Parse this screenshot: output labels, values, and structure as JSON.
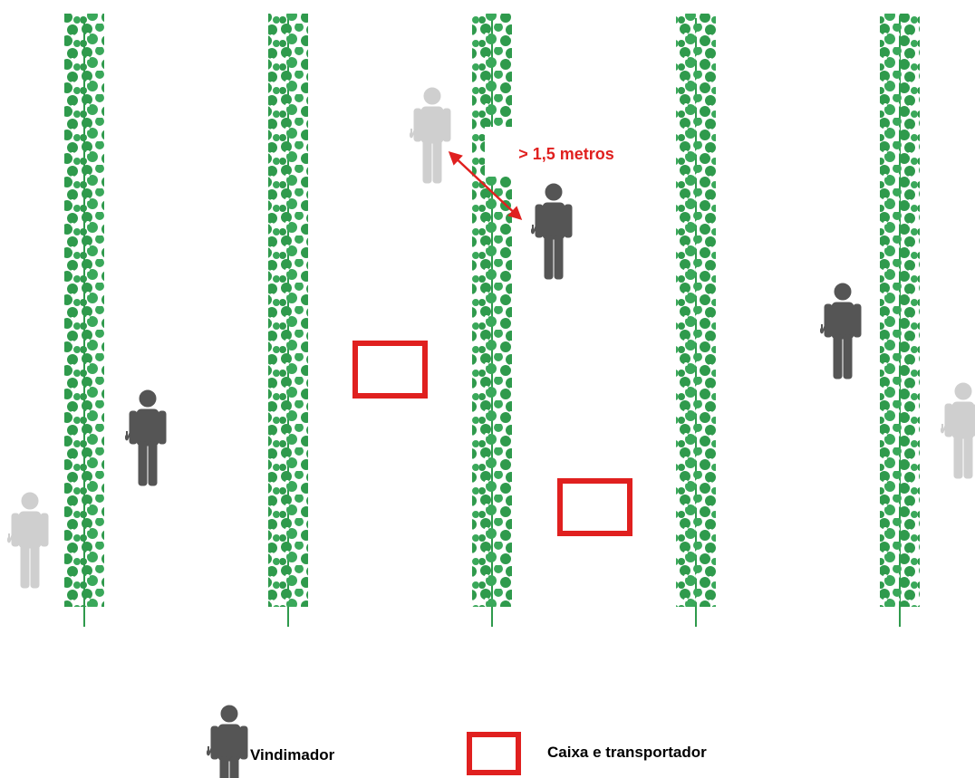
{
  "annotation": "> 1,5 metros",
  "legend": {
    "picker": "Vindimador",
    "box": "Caixa e transportador"
  }
}
